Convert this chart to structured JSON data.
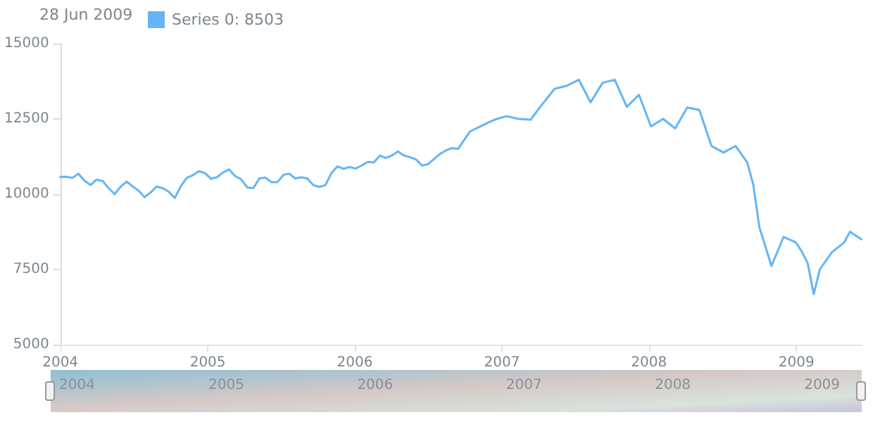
{
  "chart_data": {
    "type": "line",
    "annotations": [
      "28 Jun 2009"
    ],
    "legend": "top left",
    "grid": false,
    "marker": "none",
    "line_style": "solid",
    "xlim": [
      "2004-01-01",
      "2009-06-12"
    ],
    "ylim": [
      5000,
      15000
    ],
    "yticks": [
      5000,
      7500,
      10000,
      12500,
      15000
    ],
    "xticks": [
      {
        "value": "2004-01-01",
        "label": "2004"
      },
      {
        "value": "2005-01-01",
        "label": "2005"
      },
      {
        "value": "2006-01-01",
        "label": "2006"
      },
      {
        "value": "2007-01-01",
        "label": "2007"
      },
      {
        "value": "2008-01-01",
        "label": "2008"
      },
      {
        "value": "2009-01-01",
        "label": "2009"
      }
    ],
    "x": [
      "2004-01-01",
      "2004-01-16",
      "2004-01-31",
      "2004-02-15",
      "2004-03-01",
      "2004-03-16",
      "2004-03-31",
      "2004-04-15",
      "2004-04-30",
      "2004-05-15",
      "2004-05-30",
      "2004-06-14",
      "2004-06-29",
      "2004-07-13",
      "2004-07-28",
      "2004-08-12",
      "2004-08-27",
      "2004-09-11",
      "2004-09-26",
      "2004-10-11",
      "2004-10-26",
      "2004-11-10",
      "2004-11-25",
      "2004-12-10",
      "2004-12-25",
      "2005-01-09",
      "2005-01-24",
      "2005-02-08",
      "2005-02-23",
      "2005-03-10",
      "2005-03-25",
      "2005-04-09",
      "2005-04-24",
      "2005-05-09",
      "2005-05-24",
      "2005-06-08",
      "2005-06-23",
      "2005-07-08",
      "2005-07-22",
      "2005-08-06",
      "2005-08-21",
      "2005-09-05",
      "2005-09-20",
      "2005-10-05",
      "2005-10-20",
      "2005-11-04",
      "2005-11-19",
      "2005-12-04",
      "2005-12-19",
      "2006-01-03",
      "2006-01-18",
      "2006-02-02",
      "2006-02-17",
      "2006-03-04",
      "2006-03-19",
      "2006-04-03",
      "2006-04-18",
      "2006-05-03",
      "2006-05-18",
      "2006-06-02",
      "2006-06-17",
      "2006-07-02",
      "2006-07-17",
      "2006-07-31",
      "2006-08-15",
      "2006-08-30",
      "2006-09-14",
      "2006-10-14",
      "2006-11-13",
      "2006-12-13",
      "2007-01-12",
      "2007-02-11",
      "2007-03-13",
      "2007-04-12",
      "2007-05-12",
      "2007-06-11",
      "2007-07-11",
      "2007-08-09",
      "2007-09-08",
      "2007-10-08",
      "2007-11-07",
      "2007-12-07",
      "2008-01-06",
      "2008-02-05",
      "2008-03-06",
      "2008-04-05",
      "2008-05-05",
      "2008-06-04",
      "2008-07-04",
      "2008-08-03",
      "2008-09-01",
      "2008-09-16",
      "2008-10-01",
      "2008-10-31",
      "2008-11-30",
      "2008-12-30",
      "2009-01-14",
      "2009-01-29",
      "2009-02-13",
      "2009-02-28",
      "2009-03-30",
      "2009-04-29",
      "2009-05-14",
      "2009-06-11"
    ],
    "series": [
      {
        "name": "Series 0: 8503",
        "color": "#64b5f6",
        "values": [
          10570,
          10580,
          10540,
          10680,
          10450,
          10300,
          10480,
          10440,
          10200,
          10000,
          10250,
          10420,
          10250,
          10120,
          9900,
          10050,
          10250,
          10200,
          10080,
          9870,
          10260,
          10540,
          10630,
          10760,
          10700,
          10510,
          10560,
          10720,
          10820,
          10600,
          10490,
          10220,
          10200,
          10520,
          10550,
          10400,
          10400,
          10640,
          10680,
          10520,
          10560,
          10520,
          10300,
          10240,
          10300,
          10700,
          10920,
          10840,
          10900,
          10850,
          10950,
          11070,
          11050,
          11280,
          11200,
          11280,
          11420,
          11280,
          11230,
          11150,
          10950,
          11000,
          11170,
          11330,
          11450,
          11530,
          11500,
          12080,
          12280,
          12470,
          12590,
          12500,
          12470,
          13000,
          13500,
          13600,
          13800,
          13050,
          13700,
          13800,
          12900,
          13300,
          12250,
          12500,
          12180,
          12880,
          12800,
          11600,
          11380,
          11600,
          11050,
          10300,
          8900,
          7610,
          8580,
          8400,
          8100,
          7700,
          6680,
          7500,
          8070,
          8390,
          8750,
          8500
        ]
      }
    ]
  }
}
